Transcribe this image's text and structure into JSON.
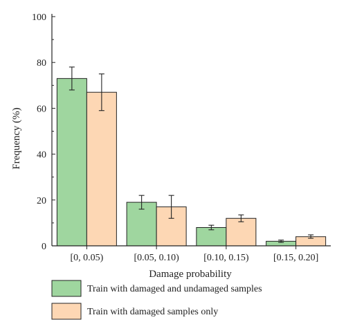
{
  "chart_data": {
    "type": "bar",
    "title": "",
    "xlabel": "Damage probability",
    "ylabel": "Frequency (%)",
    "ylim": [
      0,
      100
    ],
    "yticks": [
      0,
      20,
      40,
      60,
      80,
      100
    ],
    "categories": [
      "[0, 0.05)",
      "[0.05, 0.10)",
      "[0.10, 0.15)",
      "[0.15, 0.20]"
    ],
    "series": [
      {
        "name": "Train with damaged and undamaged samples",
        "values": [
          73,
          19,
          8,
          2
        ],
        "error_low": [
          68,
          16,
          7,
          1.5
        ],
        "error_high": [
          78,
          22,
          9,
          2.5
        ],
        "color": "#9fd69f"
      },
      {
        "name": "Train with damaged samples only",
        "values": [
          67,
          17,
          12,
          4
        ],
        "error_low": [
          59,
          12,
          10.5,
          3.3
        ],
        "error_high": [
          75,
          22,
          13.5,
          4.8
        ],
        "color": "#fdd7b4"
      }
    ],
    "grid": false,
    "legend_position": "bottom"
  }
}
